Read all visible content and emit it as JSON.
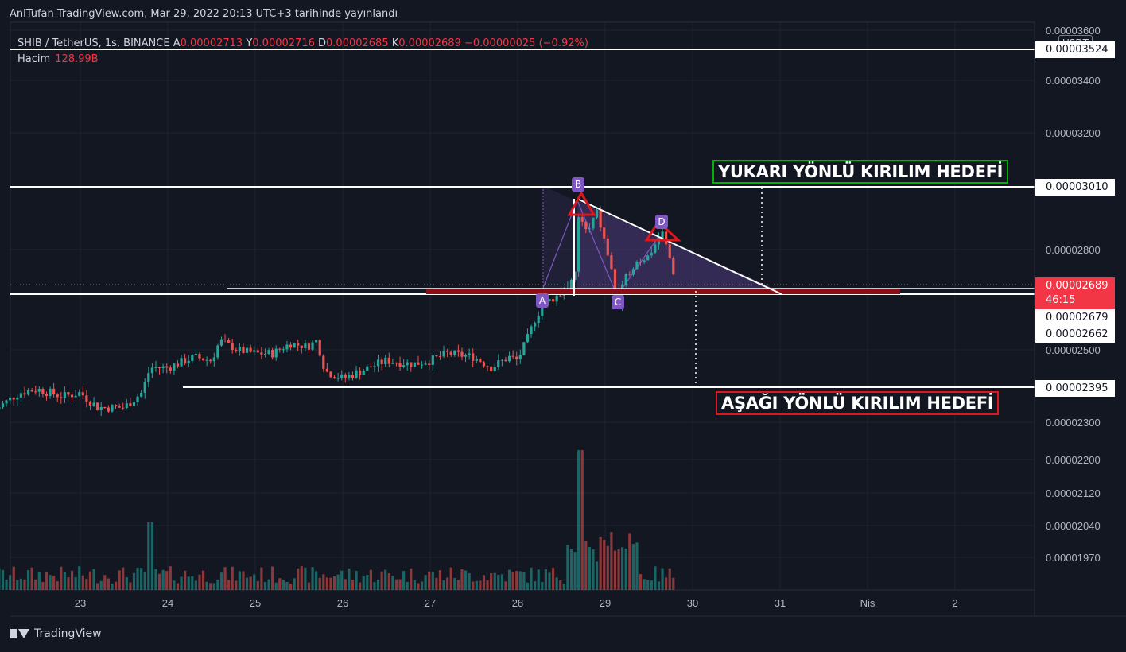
{
  "header": {
    "publisher_line": "AnlTufan TradingView.com, Mar 29, 2022 20:13 UTC+3 tarihinde yayınlandı"
  },
  "legend": {
    "symbol": "SHIB / TetherUS, 1s, BINANCE",
    "open_label": "A",
    "open_value": "0.00002713",
    "high_label": "Y",
    "high_value": "0.00002716",
    "low_label": "D",
    "low_value": "0.00002685",
    "close_label": "K",
    "close_value": "0.00002689",
    "change": "−0.00000025 (−0.92%)",
    "volume_label": "Hacim",
    "volume_value": "128.99B"
  },
  "colors": {
    "up": "#26a69a",
    "down": "#ef5350",
    "background": "#131722",
    "grid": "#1f2330",
    "pattern_fill": "#7e57c2",
    "up_box": "#00b300",
    "down_box": "#e0161c"
  },
  "axis": {
    "currency_badge": "USDT",
    "y_ticks": [
      "0.00003600",
      "0.00003400",
      "0.00003200",
      "0.00002800",
      "0.00002500",
      "0.00002300",
      "0.00002200",
      "0.00002120",
      "0.00002040",
      "0.00001970"
    ],
    "x_ticks": [
      "23",
      "24",
      "25",
      "26",
      "27",
      "28",
      "29",
      "30",
      "31",
      "Nis",
      "2"
    ]
  },
  "price_labels": {
    "top_line": "0.00003524",
    "upper_target": "0.00003010",
    "current_price": "0.00002689",
    "countdown": "46:15",
    "support_a": "0.00002679",
    "support_b": "0.00002662",
    "lower_target": "0.00002395"
  },
  "annotations": {
    "up_target": "YUKARI YÖNLÜ KIRILIM HEDEFİ",
    "down_target": "AŞAĞI YÖNLÜ KIRILIM HEDEFİ",
    "points": [
      "A",
      "B",
      "C",
      "D"
    ]
  },
  "chart_data": {
    "type": "candlestick",
    "symbol": "SHIB / TetherUS",
    "interval": "1s",
    "x_range": [
      "22",
      "2"
    ],
    "y_range": [
      1.9e-05,
      3.6e-05
    ],
    "current_close": 2.689e-05,
    "horizontal_levels": [
      3.524e-05,
      3.01e-05,
      2.679e-05,
      2.662e-05,
      2.395e-05
    ],
    "pattern": {
      "name": "descending triangle",
      "points": [
        {
          "label": "A",
          "date": "28.3",
          "price": 2.68e-05
        },
        {
          "label": "B",
          "date": "28.7",
          "price": 3e-05
        },
        {
          "label": "C",
          "date": "29.15",
          "price": 2.64e-05
        },
        {
          "label": "D",
          "date": "29.65",
          "price": 2.86e-05
        }
      ]
    },
    "close_path": [
      {
        "x": 22.0,
        "y": 2.33e-05
      },
      {
        "x": 22.3,
        "y": 2.38e-05
      },
      {
        "x": 22.5,
        "y": 2.39e-05
      },
      {
        "x": 22.8,
        "y": 2.37e-05
      },
      {
        "x": 23.0,
        "y": 2.38e-05
      },
      {
        "x": 23.2,
        "y": 2.34e-05
      },
      {
        "x": 23.5,
        "y": 2.34e-05
      },
      {
        "x": 23.7,
        "y": 2.38e-05
      },
      {
        "x": 23.8,
        "y": 2.45e-05
      },
      {
        "x": 24.0,
        "y": 2.45e-05
      },
      {
        "x": 24.3,
        "y": 2.48e-05
      },
      {
        "x": 24.5,
        "y": 2.47e-05
      },
      {
        "x": 24.6,
        "y": 2.53e-05
      },
      {
        "x": 24.8,
        "y": 2.5e-05
      },
      {
        "x": 25.0,
        "y": 2.49e-05
      },
      {
        "x": 25.2,
        "y": 2.49e-05
      },
      {
        "x": 25.4,
        "y": 2.52e-05
      },
      {
        "x": 25.6,
        "y": 2.51e-05
      },
      {
        "x": 25.7,
        "y": 2.53e-05
      },
      {
        "x": 25.8,
        "y": 2.44e-05
      },
      {
        "x": 26.0,
        "y": 2.42e-05
      },
      {
        "x": 26.2,
        "y": 2.44e-05
      },
      {
        "x": 26.5,
        "y": 2.47e-05
      },
      {
        "x": 26.8,
        "y": 2.46e-05
      },
      {
        "x": 27.0,
        "y": 2.47e-05
      },
      {
        "x": 27.2,
        "y": 2.49e-05
      },
      {
        "x": 27.5,
        "y": 2.48e-05
      },
      {
        "x": 27.7,
        "y": 2.45e-05
      },
      {
        "x": 27.9,
        "y": 2.48e-05
      },
      {
        "x": 28.0,
        "y": 2.47e-05
      },
      {
        "x": 28.1,
        "y": 2.53e-05
      },
      {
        "x": 28.2,
        "y": 2.6e-05
      },
      {
        "x": 28.3,
        "y": 2.65e-05
      },
      {
        "x": 28.5,
        "y": 2.68e-05
      },
      {
        "x": 28.65,
        "y": 2.7e-05
      },
      {
        "x": 28.7,
        "y": 2.92e-05
      },
      {
        "x": 28.8,
        "y": 2.85e-05
      },
      {
        "x": 28.9,
        "y": 2.93e-05
      },
      {
        "x": 29.0,
        "y": 2.82e-05
      },
      {
        "x": 29.1,
        "y": 2.7e-05
      },
      {
        "x": 29.15,
        "y": 2.64e-05
      },
      {
        "x": 29.25,
        "y": 2.72e-05
      },
      {
        "x": 29.35,
        "y": 2.76e-05
      },
      {
        "x": 29.5,
        "y": 2.78e-05
      },
      {
        "x": 29.65,
        "y": 2.86e-05
      },
      {
        "x": 29.75,
        "y": 2.76e-05
      },
      {
        "x": 29.82,
        "y": 2.689e-05
      }
    ]
  }
}
